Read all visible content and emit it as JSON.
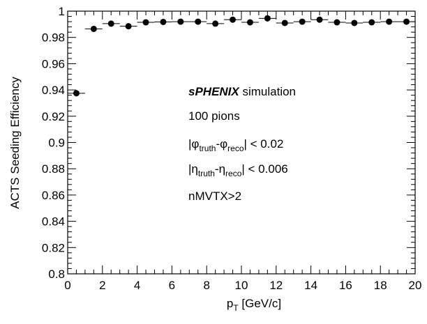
{
  "chart_data": {
    "type": "scatter",
    "xlabel": {
      "main": "p",
      "sub": "T",
      "rest": " [GeV/c]"
    },
    "ylabel": "ACTS Seeding Efficiency",
    "xlim": [
      0,
      20
    ],
    "ylim": [
      0.8,
      1.0
    ],
    "x_ticks": [
      "0",
      "2",
      "4",
      "6",
      "8",
      "10",
      "12",
      "14",
      "16",
      "18",
      "20"
    ],
    "y_ticks": [
      "0.8",
      "0.82",
      "0.84",
      "0.86",
      "0.88",
      "0.9",
      "0.92",
      "0.94",
      "0.96",
      "0.98",
      "1"
    ],
    "x_bin_half_width": 0.5,
    "series": [
      {
        "x": [
          0.5,
          1.5,
          2.5,
          3.5,
          4.5,
          5.5,
          6.5,
          7.5,
          8.5,
          9.5,
          10.5,
          11.5,
          12.5,
          13.5,
          14.5,
          15.5,
          16.5,
          17.5,
          18.5,
          19.5
        ],
        "y": [
          0.9375,
          0.9865,
          0.9905,
          0.9885,
          0.9915,
          0.9918,
          0.992,
          0.992,
          0.9905,
          0.9935,
          0.9915,
          0.9945,
          0.991,
          0.992,
          0.9935,
          0.9915,
          0.991,
          0.9915,
          0.992,
          0.992
        ],
        "yerr": [
          0.0025,
          0.0011,
          0.001,
          0.001,
          0.0009,
          0.0009,
          0.0009,
          0.0009,
          0.0009,
          0.0008,
          0.0009,
          0.0007,
          0.0009,
          0.0009,
          0.0008,
          0.0009,
          0.0009,
          0.0009,
          0.0009,
          0.0009
        ]
      }
    ],
    "annotations": {
      "brand": "sPHENIX",
      "brand_suffix": " simulation",
      "line2": "100 pions",
      "line3": {
        "pre": "|",
        "sym1": "φ",
        "sub1": "truth",
        "mid": "-",
        "sym2": "φ",
        "sub2": "reco",
        "post": "| < 0.02"
      },
      "line4": {
        "pre": "|",
        "sym1": "η",
        "sub1": "truth",
        "mid": "-",
        "sym2": "η",
        "sub2": "reco",
        "post": "| < 0.006"
      },
      "line5": "nMVTX>2"
    }
  }
}
